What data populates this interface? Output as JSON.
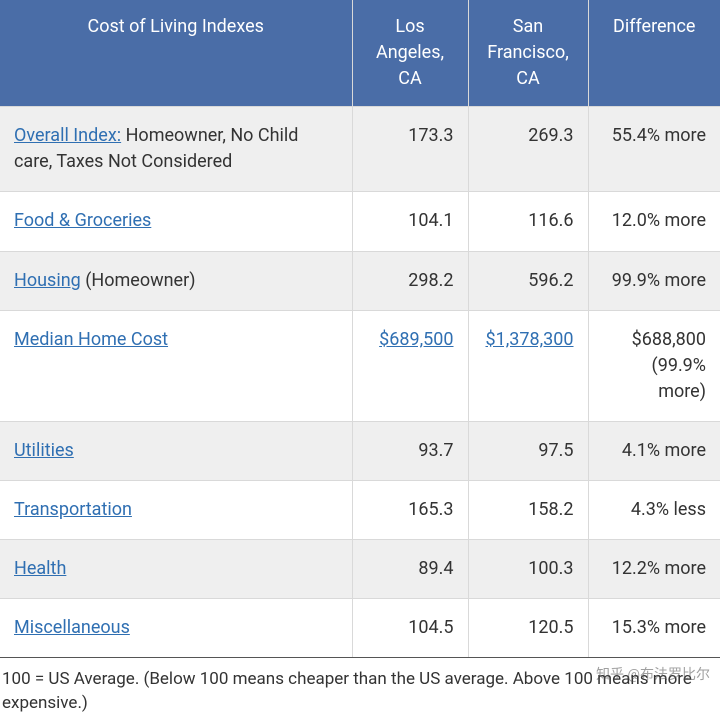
{
  "table": {
    "type": "table",
    "background_color": "#ffffff",
    "header_bg": "#4a6da7",
    "header_text_color": "#ffffff",
    "border_color": "#d9d9d9",
    "alt_row_bg": "#efefef",
    "link_color": "#2f6fb2",
    "font_size": 18,
    "columns": [
      "Cost of Living Indexes",
      "Los Angeles, CA",
      "San Francisco, CA",
      "Difference"
    ],
    "rows": [
      {
        "link": "Overall Index:",
        "suffix": " Homeowner, No Child care, Taxes Not Considered",
        "la": "173.3",
        "sf": "269.3",
        "diff": "55.4% more",
        "la_link": false,
        "sf_link": false,
        "alt": true
      },
      {
        "link": "Food & Groceries",
        "suffix": "",
        "la": "104.1",
        "sf": "116.6",
        "diff": "12.0% more",
        "la_link": false,
        "sf_link": false,
        "alt": false
      },
      {
        "link": "Housing",
        "suffix": " (Homeowner)",
        "la": "298.2",
        "sf": "596.2",
        "diff": "99.9% more",
        "la_link": false,
        "sf_link": false,
        "alt": true
      },
      {
        "link": "Median Home Cost",
        "suffix": "",
        "la": "$689,500",
        "sf": "$1,378,300",
        "diff": "$688,800 (99.9% more)",
        "la_link": true,
        "sf_link": true,
        "alt": false
      },
      {
        "link": "Utilities",
        "suffix": "",
        "la": "93.7",
        "sf": "97.5",
        "diff": "4.1% more",
        "la_link": false,
        "sf_link": false,
        "alt": true
      },
      {
        "link": "Transportation",
        "suffix": "",
        "la": "165.3",
        "sf": "158.2",
        "diff": "4.3% less",
        "la_link": false,
        "sf_link": false,
        "alt": false
      },
      {
        "link": "Health",
        "suffix": "",
        "la": "89.4",
        "sf": "100.3",
        "diff": "12.2% more",
        "la_link": false,
        "sf_link": false,
        "alt": true
      },
      {
        "link": "Miscellaneous",
        "suffix": "",
        "la": "104.5",
        "sf": "120.5",
        "diff": "15.3% more",
        "la_link": false,
        "sf_link": false,
        "alt": false
      }
    ]
  },
  "footnote": "100 = US Average. (Below 100 means cheaper than the US average. Above 100 means more expensive.)",
  "watermark": "知乎 @布法罗比尔"
}
